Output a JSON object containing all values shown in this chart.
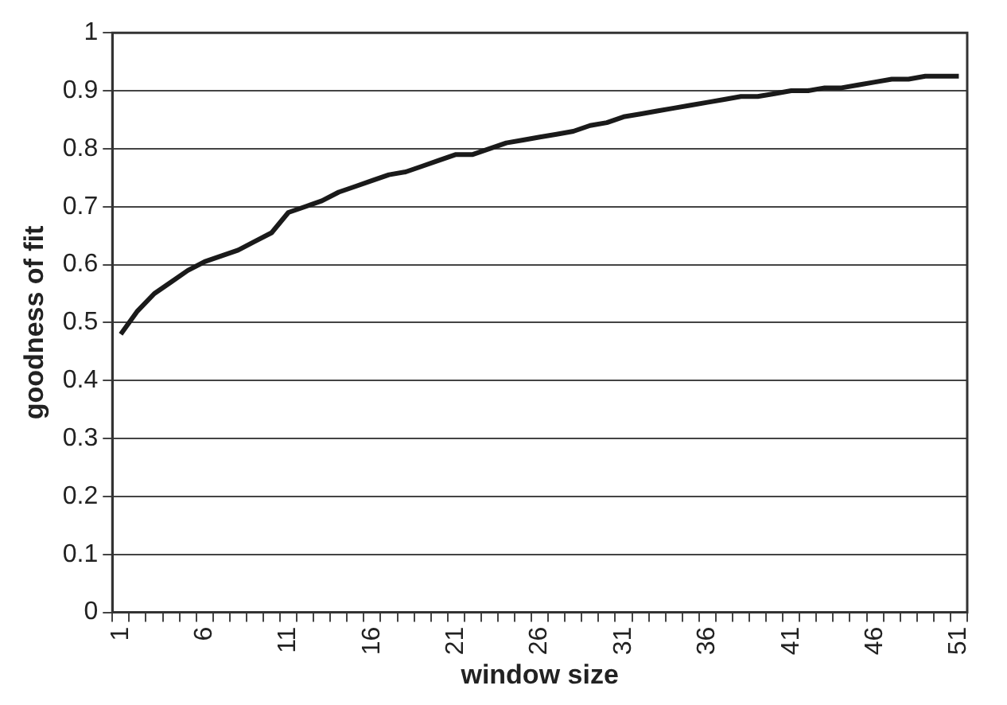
{
  "chart_data": {
    "type": "line",
    "xlabel": "window size",
    "ylabel": "goodness of fit",
    "categories": [
      "1",
      null,
      null,
      null,
      null,
      "6",
      null,
      null,
      null,
      null,
      "11",
      null,
      null,
      null,
      null,
      "16",
      null,
      null,
      null,
      null,
      "21",
      null,
      null,
      null,
      null,
      "26",
      null,
      null,
      null,
      null,
      "31",
      null,
      null,
      null,
      null,
      "36",
      null,
      null,
      null,
      null,
      "41",
      null,
      null,
      null,
      null,
      "46",
      null,
      null,
      null,
      null,
      "51"
    ],
    "series": [
      {
        "color": "#1a1a1a",
        "values": [
          0.48,
          0.52,
          0.55,
          0.57,
          0.59,
          0.605,
          0.615,
          0.625,
          0.64,
          0.655,
          0.69,
          0.7,
          0.71,
          0.725,
          0.735,
          0.745,
          0.755,
          0.76,
          0.77,
          0.78,
          0.79,
          0.79,
          0.8,
          0.81,
          0.815,
          0.82,
          0.825,
          0.83,
          0.84,
          0.845,
          0.855,
          0.86,
          0.865,
          0.87,
          0.875,
          0.88,
          0.885,
          0.89,
          0.89,
          0.895,
          0.9,
          0.9,
          0.905,
          0.905,
          0.91,
          0.915,
          0.92,
          0.92,
          0.925,
          0.925,
          0.925
        ]
      }
    ],
    "ylim": [
      0,
      1
    ],
    "yticks": [
      0,
      0.1,
      0.2,
      0.3,
      0.4,
      0.5,
      0.6,
      0.7,
      0.8,
      0.9,
      1
    ],
    "grid": "y",
    "legend": false,
    "marker": "none",
    "line_style": "solid"
  }
}
